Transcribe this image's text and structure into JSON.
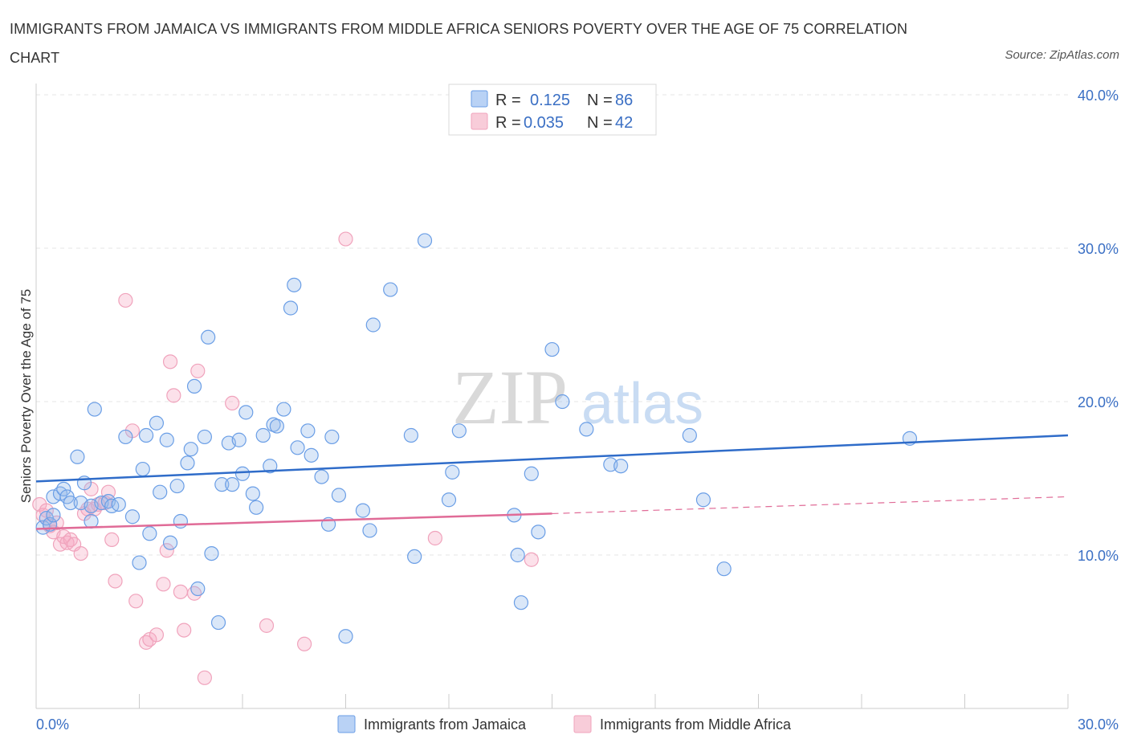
{
  "title": "IMMIGRANTS FROM JAMAICA VS IMMIGRANTS FROM MIDDLE AFRICA SENIORS POVERTY OVER THE AGE OF 75 CORRELATION CHART",
  "source": "Source: ZipAtlas.com",
  "watermark": {
    "zip": "ZIP",
    "atlas": "atlas"
  },
  "legend": {
    "r_label": "R =",
    "n_label": "N =",
    "entries": [
      {
        "r": "0.125",
        "n": "86"
      },
      {
        "r": "0.035",
        "n": "42"
      }
    ]
  },
  "chart_data": {
    "type": "scatter",
    "title": "IMMIGRANTS FROM JAMAICA VS IMMIGRANTS FROM MIDDLE AFRICA SENIORS POVERTY OVER THE AGE OF 75 CORRELATION CHART",
    "xlabel": "",
    "ylabel": "Seniors Poverty Over the Age of 75",
    "xlim": [
      0,
      30
    ],
    "ylim": [
      0,
      40
    ],
    "x_tick_labels": [
      "0.0%",
      "30.0%"
    ],
    "y_ticks": [
      10,
      20,
      30,
      40
    ],
    "y_tick_labels": [
      "10.0%",
      "20.0%",
      "30.0%",
      "40.0%"
    ],
    "grid": true,
    "legend_position": "top-center",
    "colors": {
      "jamaica": "#6a9ee6",
      "middle_africa": "#f0a3bc",
      "jamaica_line": "#2f6cc9",
      "africa_line": "#e06b97"
    },
    "series": [
      {
        "name": "Immigrants from Jamaica",
        "r": 0.125,
        "n": 86,
        "trend": {
          "x": [
            0,
            30
          ],
          "y": [
            14.8,
            17.8
          ]
        },
        "points": [
          [
            0.2,
            11.8
          ],
          [
            0.3,
            12.4
          ],
          [
            0.4,
            12.0
          ],
          [
            0.5,
            12.6
          ],
          [
            0.5,
            13.8
          ],
          [
            0.7,
            14.0
          ],
          [
            0.8,
            14.3
          ],
          [
            0.9,
            13.8
          ],
          [
            1.0,
            13.4
          ],
          [
            1.2,
            16.4
          ],
          [
            1.3,
            13.4
          ],
          [
            1.4,
            14.7
          ],
          [
            1.6,
            12.2
          ],
          [
            1.6,
            13.2
          ],
          [
            1.7,
            19.5
          ],
          [
            1.9,
            13.4
          ],
          [
            2.1,
            13.5
          ],
          [
            2.2,
            13.2
          ],
          [
            2.4,
            13.3
          ],
          [
            2.6,
            17.7
          ],
          [
            2.8,
            12.5
          ],
          [
            3.0,
            9.5
          ],
          [
            3.1,
            15.6
          ],
          [
            3.2,
            17.8
          ],
          [
            3.3,
            11.4
          ],
          [
            3.5,
            18.6
          ],
          [
            3.6,
            14.1
          ],
          [
            3.8,
            17.5
          ],
          [
            3.9,
            10.8
          ],
          [
            4.1,
            14.5
          ],
          [
            4.2,
            12.2
          ],
          [
            4.4,
            16.0
          ],
          [
            4.5,
            16.9
          ],
          [
            4.6,
            21.0
          ],
          [
            4.7,
            7.8
          ],
          [
            4.9,
            17.7
          ],
          [
            5.0,
            24.2
          ],
          [
            5.1,
            10.1
          ],
          [
            5.3,
            5.6
          ],
          [
            5.4,
            14.6
          ],
          [
            5.6,
            17.3
          ],
          [
            5.7,
            14.6
          ],
          [
            5.9,
            17.5
          ],
          [
            6.0,
            15.3
          ],
          [
            6.1,
            19.3
          ],
          [
            6.3,
            14.0
          ],
          [
            6.4,
            13.1
          ],
          [
            6.6,
            17.8
          ],
          [
            6.8,
            15.8
          ],
          [
            6.9,
            18.5
          ],
          [
            7.0,
            18.4
          ],
          [
            7.2,
            19.5
          ],
          [
            7.4,
            26.1
          ],
          [
            7.5,
            27.6
          ],
          [
            7.6,
            17.0
          ],
          [
            7.9,
            18.1
          ],
          [
            8.0,
            16.5
          ],
          [
            8.3,
            15.1
          ],
          [
            8.5,
            12.0
          ],
          [
            8.6,
            17.7
          ],
          [
            8.8,
            13.9
          ],
          [
            9.0,
            4.7
          ],
          [
            9.5,
            12.9
          ],
          [
            9.7,
            11.6
          ],
          [
            9.8,
            25.0
          ],
          [
            10.3,
            27.3
          ],
          [
            10.9,
            17.8
          ],
          [
            11.0,
            9.9
          ],
          [
            11.3,
            30.5
          ],
          [
            12.0,
            13.6
          ],
          [
            12.1,
            15.4
          ],
          [
            12.3,
            18.1
          ],
          [
            13.9,
            12.6
          ],
          [
            14.0,
            10.0
          ],
          [
            14.1,
            6.9
          ],
          [
            14.4,
            15.3
          ],
          [
            14.6,
            11.5
          ],
          [
            15.0,
            23.4
          ],
          [
            15.3,
            20.0
          ],
          [
            16.0,
            18.2
          ],
          [
            16.7,
            15.9
          ],
          [
            17.0,
            15.8
          ],
          [
            19.0,
            17.8
          ],
          [
            19.4,
            13.6
          ],
          [
            20.0,
            9.1
          ],
          [
            25.4,
            17.6
          ]
        ]
      },
      {
        "name": "Immigrants from Middle Africa",
        "r": 0.035,
        "n": 42,
        "trend": {
          "x": [
            0,
            15
          ],
          "y": [
            11.7,
            12.7
          ]
        },
        "trend_extension": {
          "x": [
            15,
            30
          ],
          "y": [
            12.7,
            13.8
          ]
        },
        "points": [
          [
            0.1,
            13.3
          ],
          [
            0.2,
            12.6
          ],
          [
            0.3,
            12.9
          ],
          [
            0.4,
            11.9
          ],
          [
            0.5,
            11.5
          ],
          [
            0.6,
            12.1
          ],
          [
            0.7,
            10.7
          ],
          [
            0.8,
            11.2
          ],
          [
            0.9,
            10.8
          ],
          [
            1.0,
            11.0
          ],
          [
            1.1,
            10.7
          ],
          [
            1.3,
            10.1
          ],
          [
            1.4,
            12.7
          ],
          [
            1.5,
            13.0
          ],
          [
            1.6,
            14.3
          ],
          [
            1.7,
            13.0
          ],
          [
            1.8,
            13.3
          ],
          [
            2.0,
            13.4
          ],
          [
            2.1,
            14.1
          ],
          [
            2.2,
            11.0
          ],
          [
            2.3,
            8.3
          ],
          [
            2.6,
            26.6
          ],
          [
            2.8,
            18.1
          ],
          [
            2.9,
            7.0
          ],
          [
            3.2,
            4.3
          ],
          [
            3.3,
            4.5
          ],
          [
            3.5,
            4.8
          ],
          [
            3.7,
            8.1
          ],
          [
            3.8,
            10.3
          ],
          [
            3.9,
            22.6
          ],
          [
            4.0,
            20.4
          ],
          [
            4.2,
            7.6
          ],
          [
            4.3,
            5.1
          ],
          [
            4.6,
            7.5
          ],
          [
            4.7,
            22.0
          ],
          [
            4.9,
            2.0
          ],
          [
            5.7,
            19.9
          ],
          [
            6.7,
            5.4
          ],
          [
            7.8,
            4.2
          ],
          [
            9.0,
            30.6
          ],
          [
            11.6,
            11.1
          ],
          [
            14.4,
            9.7
          ]
        ]
      }
    ]
  }
}
